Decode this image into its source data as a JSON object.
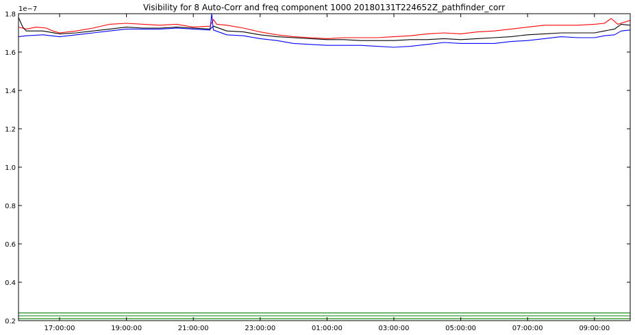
{
  "chart_data": {
    "type": "line",
    "title": "Visibility for 8 Auto-Corr and freq component 1000 20180131T224652Z_pathfinder_corr",
    "offset_label": "1e−7",
    "xlabel": "",
    "ylabel": "",
    "x_unit": "hours since 16:00 (timeline 16:00 → 10:00 next day)",
    "xlim": [
      -0.23,
      18.07
    ],
    "ylim": [
      0.2,
      1.8
    ],
    "y_ticks": [
      0.2,
      0.4,
      0.6,
      0.8,
      1.0,
      1.2,
      1.4,
      1.6,
      1.8
    ],
    "y_tick_labels": [
      "0.2",
      "0.4",
      "0.6",
      "0.8",
      "1.0",
      "1.2",
      "1.4",
      "1.6",
      "1.8"
    ],
    "x_ticks": [
      1,
      3,
      5,
      7,
      9,
      11,
      13,
      15,
      17
    ],
    "x_tick_labels": [
      "17:00:00",
      "19:00:00",
      "21:00:00",
      "23:00:00",
      "01:00:00",
      "03:00:00",
      "05:00:00",
      "07:00:00",
      "09:00:00"
    ],
    "grid": false,
    "series": [
      {
        "color": "#ff0000",
        "x": [
          -0.23,
          0.0,
          0.3,
          0.6,
          0.8,
          1.0,
          1.5,
          2.0,
          2.5,
          3.0,
          3.5,
          4.0,
          4.5,
          5.0,
          5.5,
          5.6,
          5.7,
          6.0,
          6.5,
          7.0,
          7.5,
          8.0,
          8.5,
          9.0,
          9.5,
          10.0,
          10.5,
          11.0,
          11.5,
          12.0,
          12.5,
          13.0,
          13.5,
          14.0,
          14.5,
          15.0,
          15.5,
          16.0,
          16.5,
          17.0,
          17.3,
          17.5,
          17.7,
          18.07
        ],
        "y": [
          1.73,
          1.72,
          1.73,
          1.725,
          1.71,
          1.7,
          1.71,
          1.725,
          1.745,
          1.75,
          1.745,
          1.74,
          1.745,
          1.73,
          1.735,
          1.77,
          1.745,
          1.74,
          1.725,
          1.705,
          1.69,
          1.68,
          1.675,
          1.67,
          1.675,
          1.675,
          1.675,
          1.68,
          1.685,
          1.695,
          1.7,
          1.695,
          1.705,
          1.71,
          1.72,
          1.73,
          1.74,
          1.74,
          1.74,
          1.745,
          1.75,
          1.775,
          1.745,
          1.765
        ]
      },
      {
        "color": "#000000",
        "x": [
          -0.23,
          -0.1,
          0.0,
          0.5,
          1.0,
          1.5,
          2.0,
          2.5,
          3.0,
          3.5,
          4.0,
          4.5,
          5.0,
          5.5,
          5.6,
          6.0,
          6.5,
          7.0,
          7.5,
          8.0,
          8.5,
          9.0,
          9.5,
          10.0,
          10.5,
          11.0,
          11.5,
          12.0,
          12.5,
          13.0,
          13.5,
          14.0,
          14.5,
          15.0,
          15.5,
          16.0,
          16.5,
          17.0,
          17.3,
          17.6,
          17.8,
          18.07
        ],
        "y": [
          1.78,
          1.73,
          1.71,
          1.71,
          1.695,
          1.7,
          1.71,
          1.72,
          1.73,
          1.725,
          1.725,
          1.73,
          1.725,
          1.72,
          1.735,
          1.71,
          1.705,
          1.69,
          1.68,
          1.675,
          1.67,
          1.665,
          1.665,
          1.66,
          1.66,
          1.66,
          1.665,
          1.665,
          1.67,
          1.665,
          1.67,
          1.675,
          1.68,
          1.69,
          1.695,
          1.7,
          1.7,
          1.7,
          1.71,
          1.72,
          1.745,
          1.74
        ]
      },
      {
        "color": "#0000ff",
        "x": [
          -0.23,
          0.0,
          0.5,
          1.0,
          1.5,
          2.0,
          2.5,
          3.0,
          3.5,
          4.0,
          4.5,
          5.0,
          5.5,
          5.55,
          5.6,
          6.0,
          6.5,
          7.0,
          7.5,
          8.0,
          8.5,
          9.0,
          9.5,
          10.0,
          10.5,
          11.0,
          11.5,
          12.0,
          12.5,
          13.0,
          13.5,
          14.0,
          14.5,
          15.0,
          15.5,
          16.0,
          16.5,
          17.0,
          17.3,
          17.6,
          17.8,
          18.07
        ],
        "y": [
          1.68,
          1.685,
          1.69,
          1.68,
          1.69,
          1.7,
          1.71,
          1.72,
          1.72,
          1.72,
          1.725,
          1.72,
          1.715,
          1.8,
          1.715,
          1.69,
          1.685,
          1.67,
          1.66,
          1.645,
          1.64,
          1.635,
          1.635,
          1.635,
          1.63,
          1.625,
          1.63,
          1.64,
          1.65,
          1.645,
          1.645,
          1.645,
          1.655,
          1.66,
          1.67,
          1.68,
          1.675,
          1.675,
          1.685,
          1.69,
          1.71,
          1.715
        ]
      },
      {
        "color": "#008000",
        "x": [
          -0.23,
          18.07
        ],
        "y": [
          0.24,
          0.24
        ]
      },
      {
        "color": "#008000",
        "x": [
          -0.23,
          18.07
        ],
        "y": [
          0.225,
          0.225
        ]
      },
      {
        "color": "#008000",
        "x": [
          -0.23,
          18.07
        ],
        "y": [
          0.21,
          0.21
        ]
      }
    ]
  }
}
